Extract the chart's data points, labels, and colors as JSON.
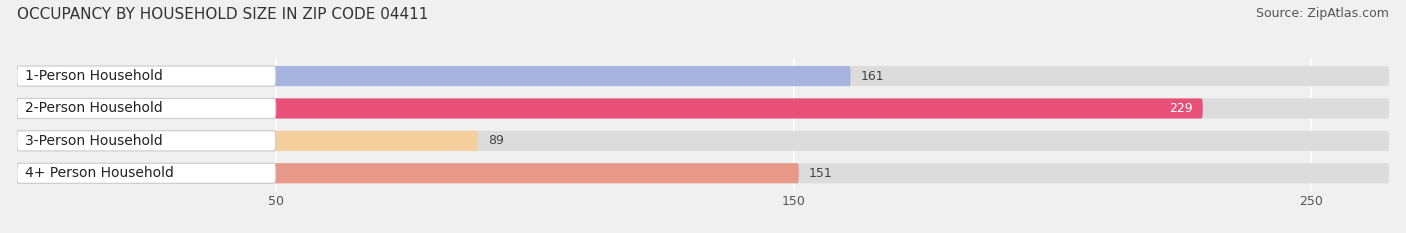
{
  "title": "OCCUPANCY BY HOUSEHOLD SIZE IN ZIP CODE 04411",
  "source": "Source: ZipAtlas.com",
  "categories": [
    "1-Person Household",
    "2-Person Household",
    "3-Person Household",
    "4+ Person Household"
  ],
  "values": [
    161,
    229,
    89,
    151
  ],
  "bar_colors": [
    "#a8b4e0",
    "#e8507a",
    "#f5cf9e",
    "#e89888"
  ],
  "background_color": "#f0f0f0",
  "bar_bg_color": "#dcdcdc",
  "xlim": [
    0,
    265
  ],
  "xticks": [
    50,
    150,
    250
  ],
  "label_bg_color": "#ffffff",
  "title_fontsize": 11,
  "source_fontsize": 9,
  "tick_fontsize": 9,
  "bar_label_fontsize": 9,
  "category_fontsize": 10
}
